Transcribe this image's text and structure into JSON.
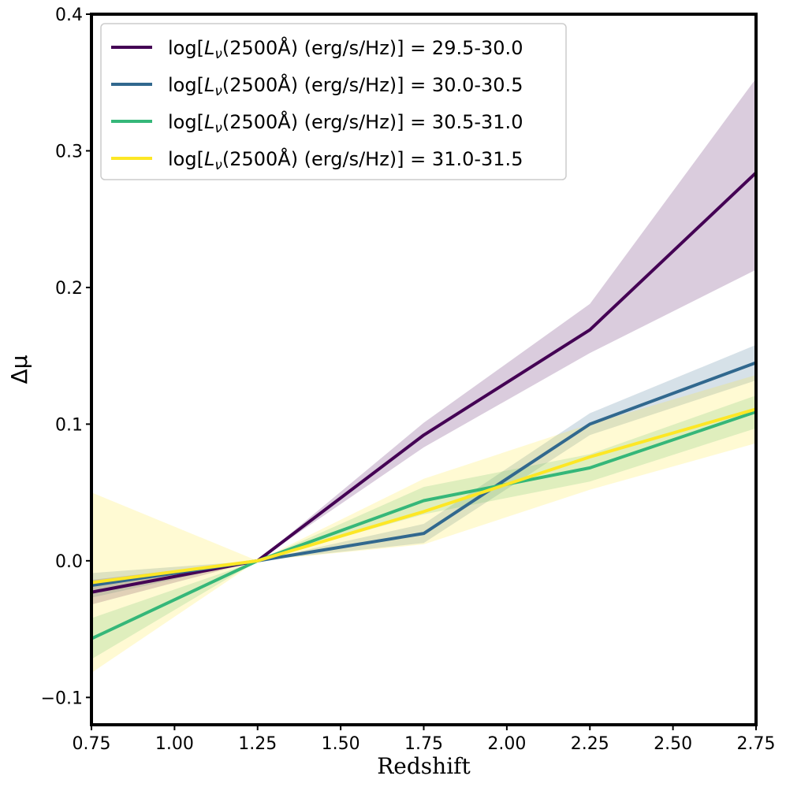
{
  "chart_data": {
    "type": "line",
    "title": "",
    "xlabel": "Redshift",
    "ylabel": "Δμ",
    "xlim": [
      0.75,
      2.75
    ],
    "ylim": [
      -0.12,
      0.4
    ],
    "xticks": [
      0.75,
      1.0,
      1.25,
      1.5,
      1.75,
      2.0,
      2.25,
      2.5,
      2.75
    ],
    "xtick_labels": [
      "0.75",
      "1.00",
      "1.25",
      "1.50",
      "1.75",
      "2.00",
      "2.25",
      "2.50",
      "2.75"
    ],
    "yticks": [
      -0.1,
      0.0,
      0.1,
      0.2,
      0.3,
      0.4
    ],
    "ytick_labels": [
      "−0.1",
      "0.0",
      "0.1",
      "0.2",
      "0.3",
      "0.4"
    ],
    "grid": false,
    "legend_position": "top-left",
    "x": [
      0.75,
      1.25,
      1.75,
      2.25,
      2.75
    ],
    "series": [
      {
        "name": "log[Lν(2500Å) (erg/s/Hz)] = 29.5-30.0",
        "legend_range": "29.5-30.0",
        "color": "#440154",
        "values": [
          -0.023,
          0.0,
          0.092,
          0.169,
          0.284
        ],
        "lower": [
          -0.032,
          0.0,
          0.083,
          0.152,
          0.213
        ],
        "upper": [
          -0.014,
          0.0,
          0.101,
          0.188,
          0.353
        ]
      },
      {
        "name": "log[Lν(2500Å) (erg/s/Hz)] = 30.0-30.5",
        "legend_range": "30.0-30.5",
        "color": "#31688e",
        "values": [
          -0.018,
          0.0,
          0.02,
          0.1,
          0.145
        ],
        "lower": [
          -0.027,
          0.0,
          0.013,
          0.092,
          0.132
        ],
        "upper": [
          -0.009,
          0.0,
          0.027,
          0.108,
          0.158
        ]
      },
      {
        "name": "log[Lν(2500Å) (erg/s/Hz)] = 30.5-31.0",
        "legend_range": "30.5-31.0",
        "color": "#35b779",
        "values": [
          -0.057,
          0.0,
          0.044,
          0.068,
          0.109
        ],
        "lower": [
          -0.072,
          0.0,
          0.034,
          0.058,
          0.097
        ],
        "upper": [
          -0.042,
          0.0,
          0.054,
          0.078,
          0.121
        ]
      },
      {
        "name": "log[Lν(2500Å) (erg/s/Hz)] = 31.0-31.5",
        "legend_range": "31.0-31.5",
        "color": "#fde725",
        "values": [
          -0.016,
          0.0,
          0.036,
          0.076,
          0.111
        ],
        "lower": [
          -0.082,
          0.0,
          0.012,
          0.052,
          0.086
        ],
        "upper": [
          0.05,
          0.0,
          0.06,
          0.1,
          0.136
        ]
      }
    ],
    "legend_prefix": "log[",
    "legend_symbol": "L",
    "legend_subscript": "ν",
    "legend_mid": "(2500Å) (erg/s/Hz)]",
    "legend_equals": "="
  }
}
